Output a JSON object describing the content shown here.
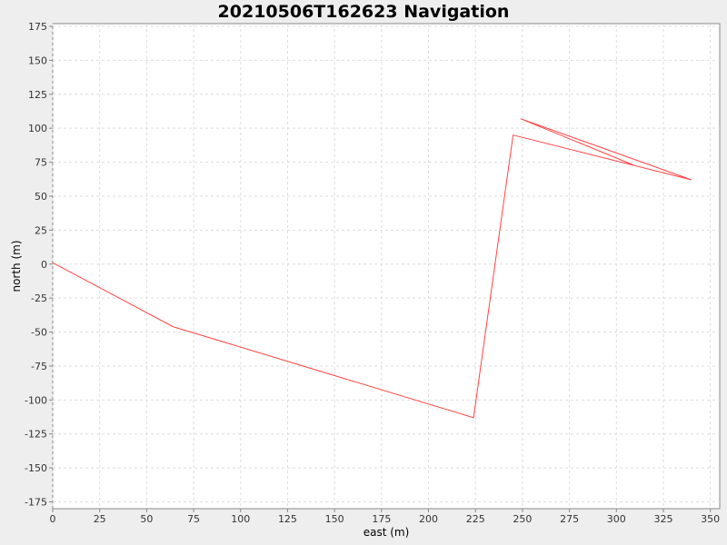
{
  "chart_data": {
    "type": "line",
    "title": "20210506T162623 Navigation",
    "xlabel": "east (m)",
    "ylabel": "north (m)",
    "xlim": [
      0,
      355
    ],
    "ylim": [
      -180,
      177
    ],
    "xticks": [
      0,
      25,
      50,
      75,
      100,
      125,
      150,
      175,
      200,
      225,
      250,
      275,
      300,
      325,
      350
    ],
    "yticks": [
      175,
      150,
      125,
      100,
      75,
      50,
      25,
      0,
      -25,
      -50,
      -75,
      -100,
      -125,
      -150,
      -175
    ],
    "grid": true,
    "legend": "none",
    "series": [
      {
        "color": "#ff4444",
        "x": [
          0,
          64,
          224,
          245,
          340,
          249,
          309
        ],
        "y": [
          1,
          -46,
          -113,
          95,
          62,
          107,
          73
        ]
      }
    ]
  }
}
